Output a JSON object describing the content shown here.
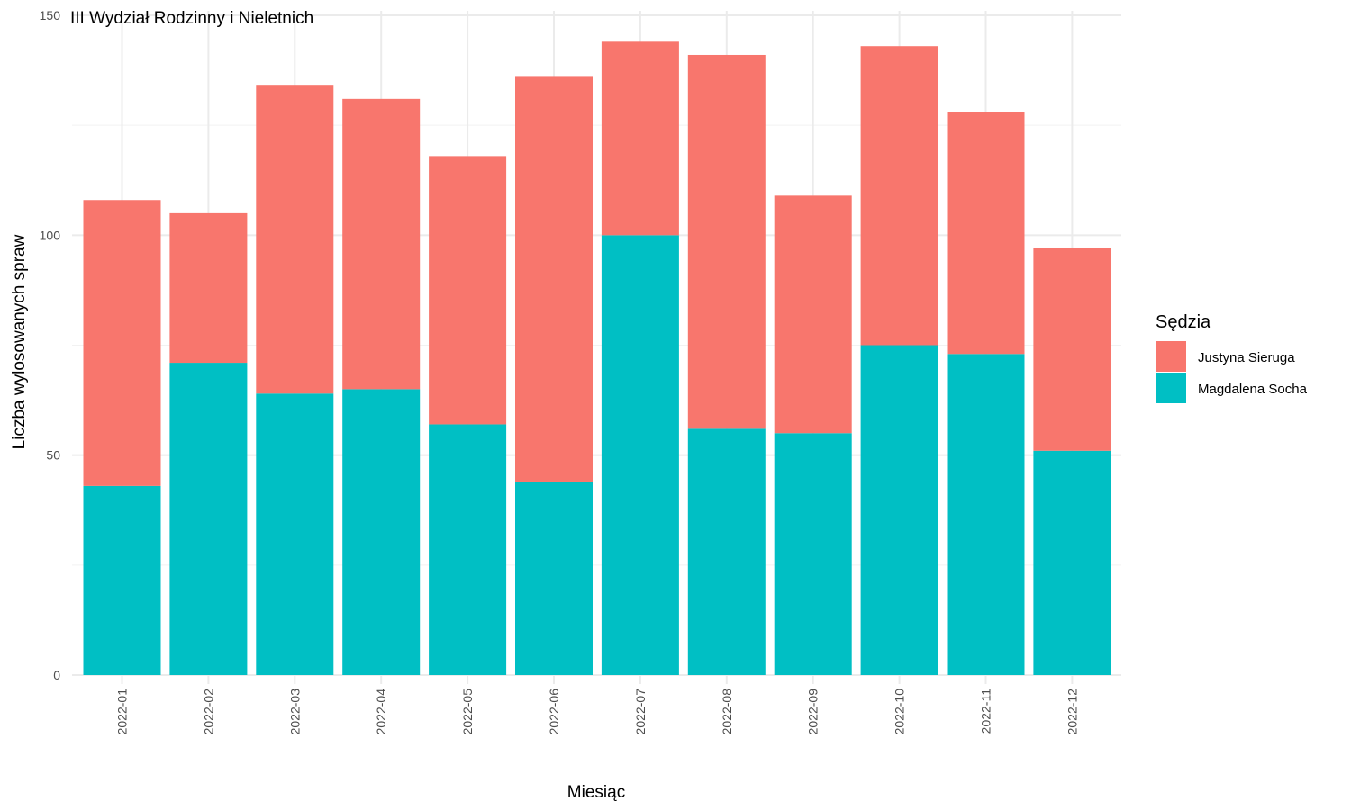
{
  "chart_data": {
    "type": "bar",
    "stacked": true,
    "annotation": "III Wydział Rodzinny i Nieletnich",
    "xlabel": "Miesiąc",
    "ylabel": "Liczba wylosowanych spraw",
    "ylim": [
      0,
      150
    ],
    "yticks": [
      0,
      50,
      100,
      150
    ],
    "grid": true,
    "legend_position": "right",
    "legend_title": "Sędzia",
    "categories": [
      "2022-01",
      "2022-02",
      "2022-03",
      "2022-04",
      "2022-05",
      "2022-06",
      "2022-07",
      "2022-08",
      "2022-09",
      "2022-10",
      "2022-11",
      "2022-12"
    ],
    "series": [
      {
        "name": "Magdalena Socha",
        "color": "#00BFC4",
        "values": [
          43,
          71,
          64,
          65,
          57,
          44,
          100,
          56,
          55,
          75,
          73,
          51
        ]
      },
      {
        "name": "Justyna Sieruga",
        "color": "#F8766D",
        "values": [
          65,
          34,
          70,
          66,
          61,
          92,
          44,
          85,
          54,
          68,
          55,
          46
        ]
      }
    ],
    "legend_order": [
      "Justyna Sieruga",
      "Magdalena Socha"
    ]
  }
}
